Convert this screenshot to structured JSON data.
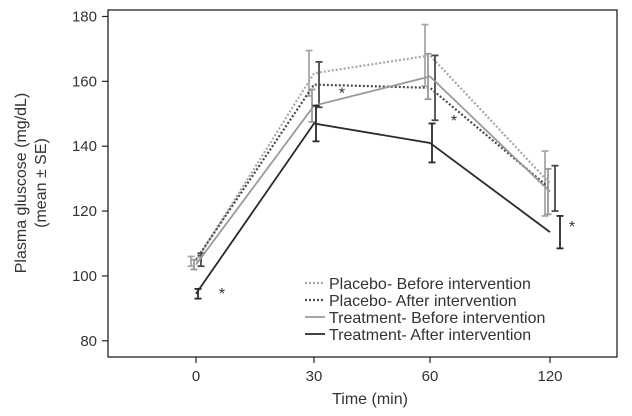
{
  "chart_data": {
    "type": "line",
    "title": "",
    "xlabel": "Time (min)",
    "ylabel": [
      "Plasma gluscose (mg/dL)",
      "(mean ± SE)"
    ],
    "x_ticks": [
      "0",
      "30",
      "60",
      "120"
    ],
    "y_ticks": [
      "80",
      "100",
      "120",
      "140",
      "160",
      "180"
    ],
    "ylim": [
      75,
      182
    ],
    "x": [
      0,
      30,
      60,
      120
    ],
    "grid": false,
    "legend_position": "bottom-right",
    "series": [
      {
        "name": "Placebo- Before intervention",
        "style": "dotted",
        "color": "#a8a8a8",
        "values": [
          104.5,
          162.5,
          168,
          128.5
        ],
        "errors": [
          1.5,
          7,
          9.5,
          10
        ]
      },
      {
        "name": "Placebo- After intervention",
        "style": "dotted",
        "color": "#4a4a4a",
        "values": [
          105,
          159,
          158,
          127
        ],
        "errors": [
          2,
          7,
          10,
          7
        ]
      },
      {
        "name": "Treatment- Before intervention",
        "style": "solid",
        "color": "#9a9a9a",
        "values": [
          103.5,
          152.5,
          161.5,
          126
        ],
        "errors": [
          1.5,
          5,
          7,
          7
        ]
      },
      {
        "name": "Treatment- After intervention",
        "style": "solid",
        "color": "#2a2a2a",
        "values": [
          94.5,
          147,
          141,
          113.5
        ],
        "errors": [
          1.5,
          5.5,
          6,
          5
        ]
      }
    ],
    "annotations": [
      {
        "text": "*",
        "x": 0,
        "y": 94.5
      },
      {
        "text": "*",
        "x": 30,
        "y": 147
      },
      {
        "text": "*",
        "x": 60,
        "y": 141
      },
      {
        "text": "*",
        "x": 120,
        "y": 113.5
      }
    ]
  }
}
